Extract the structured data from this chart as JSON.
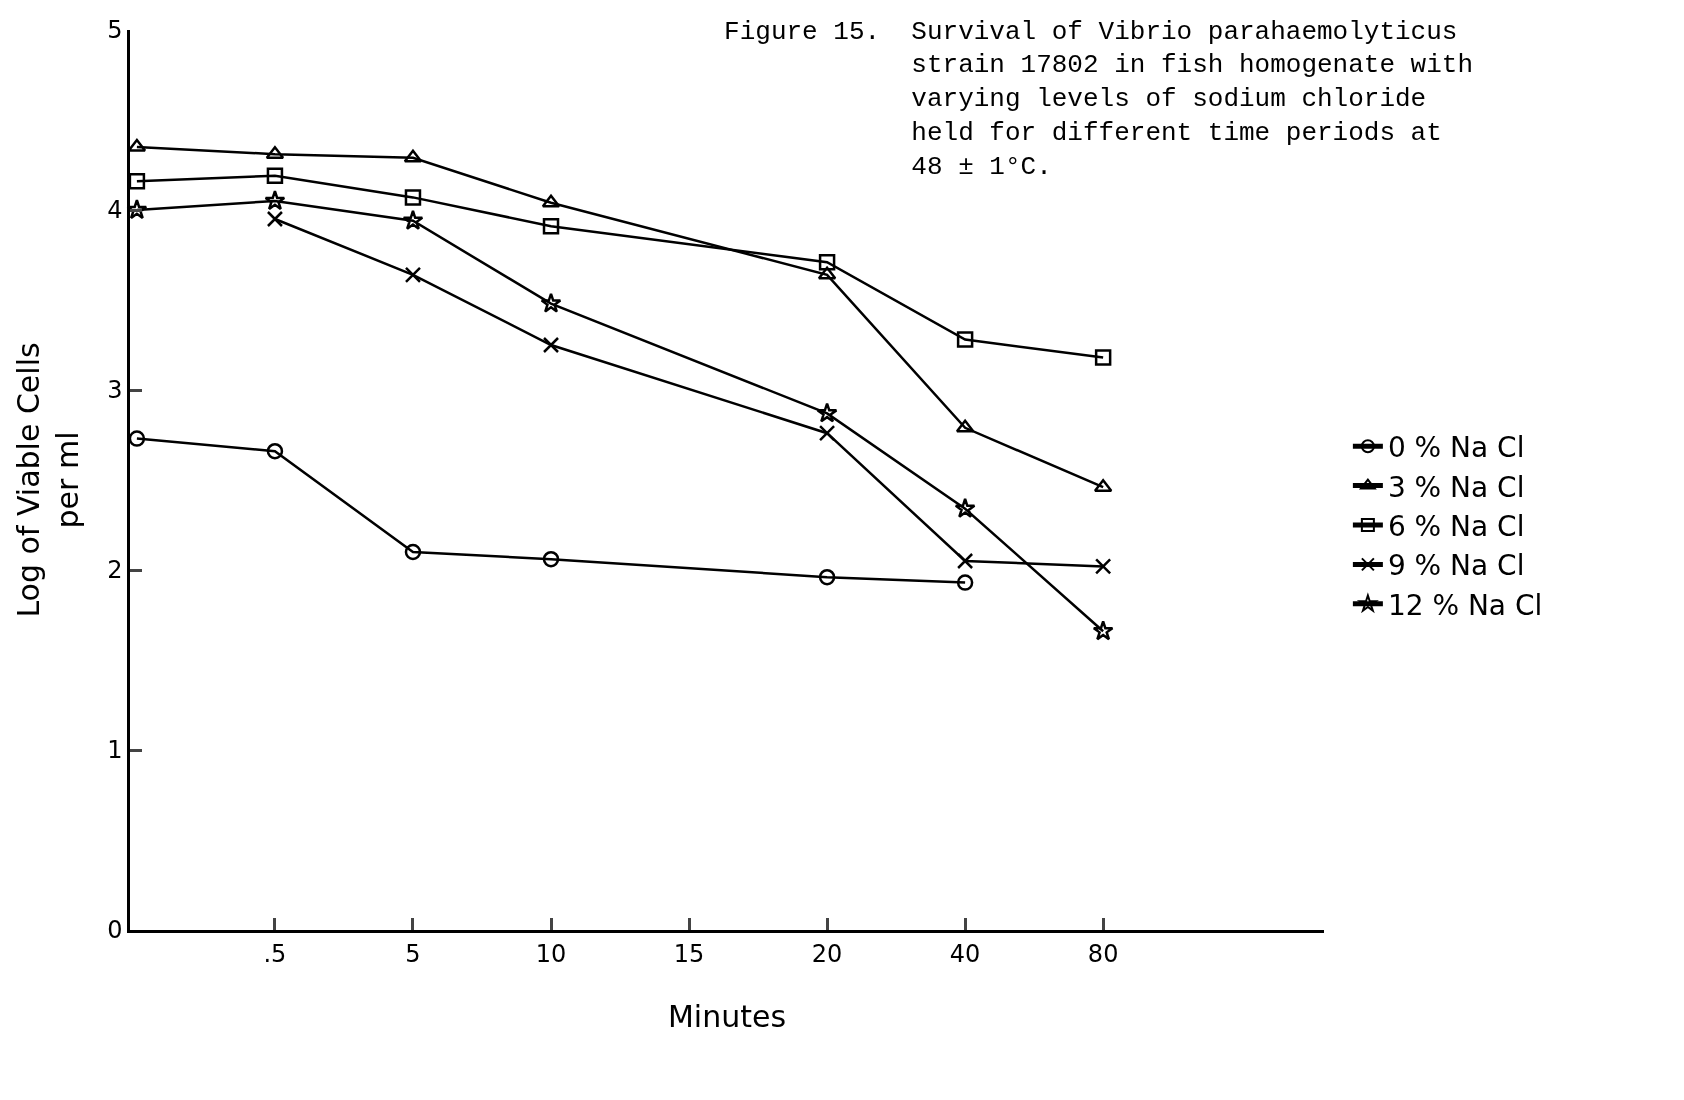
{
  "chart_data": {
    "type": "line",
    "title": "Figure 15.  Survival of Vibrio parahaemolyticus\n            strain 17802 in fish homogenate with\n            varying levels of sodium chloride\n            held for different time periods at\n            48 ± 1°C.",
    "xlabel": "Minutes",
    "ylabel": "Log of Viable Cells\nper ml",
    "categories": [
      null,
      ".5",
      "5",
      "10",
      "15",
      "20",
      "40",
      "80"
    ],
    "ylim": [
      0,
      5
    ],
    "yticks": [
      0,
      1,
      2,
      3,
      4,
      5
    ],
    "grid": false,
    "legend": "right",
    "line_style": "solid",
    "series": [
      {
        "name": "0 % Na Cl",
        "color": "#000000",
        "marker": "circle",
        "values": [
          2.73,
          2.66,
          2.1,
          2.06,
          null,
          1.96,
          1.93,
          null
        ]
      },
      {
        "name": "3 % Na Cl",
        "color": "#000000",
        "marker": "triangle",
        "values": [
          4.35,
          4.31,
          4.29,
          4.04,
          null,
          3.64,
          2.79,
          2.46
        ]
      },
      {
        "name": "6 % Na Cl",
        "color": "#000000",
        "marker": "square",
        "values": [
          4.16,
          4.19,
          4.07,
          3.91,
          null,
          3.71,
          3.28,
          3.18
        ]
      },
      {
        "name": "9 % Na Cl",
        "color": "#000000",
        "marker": "cross",
        "values": [
          null,
          3.95,
          3.64,
          3.25,
          null,
          2.76,
          2.05,
          2.02
        ]
      },
      {
        "name": "12 % Na Cl",
        "color": "#000000",
        "marker": "star",
        "values": [
          4.0,
          4.05,
          3.94,
          3.48,
          null,
          2.87,
          2.34,
          1.66
        ]
      }
    ]
  }
}
